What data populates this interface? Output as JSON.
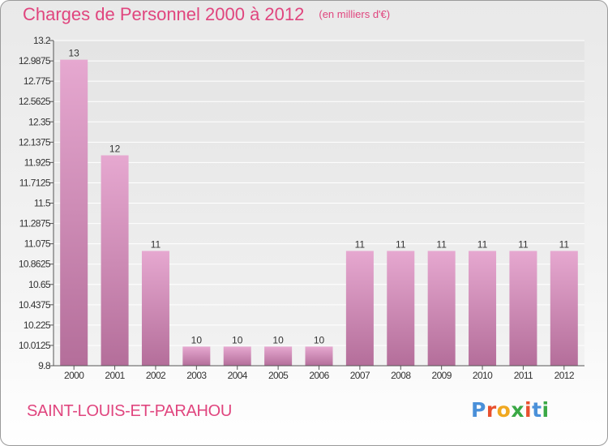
{
  "header": {
    "title": "Charges de Personnel 2000 à 2012",
    "subtitle": "(en milliers d'€)"
  },
  "footer": {
    "town": "SAINT-LOUIS-ET-PARAHOU",
    "brand": "Proxiti",
    "brand_colors": [
      "#4a90d9",
      "#e8502e",
      "#f0a820",
      "#3aa845",
      "#e8502e",
      "#4a90d9",
      "#3aa845"
    ]
  },
  "chart_data": {
    "type": "bar",
    "categories": [
      "2000",
      "2001",
      "2002",
      "2003",
      "2004",
      "2005",
      "2006",
      "2007",
      "2008",
      "2009",
      "2010",
      "2011",
      "2012"
    ],
    "values": [
      13.0,
      12.0,
      11.0,
      10.0,
      10.0,
      10.0,
      10.0,
      11.0,
      11.0,
      11.0,
      11.0,
      11.0,
      11.0
    ],
    "labels": [
      "13",
      "12",
      "11",
      "10",
      "10",
      "10",
      "10",
      "11",
      "11",
      "11",
      "11",
      "11",
      "11"
    ],
    "ylim": [
      9.8,
      13.2
    ],
    "yticks": [
      "9.8",
      "10.0125",
      "10.225",
      "10.4375",
      "10.65",
      "10.8625",
      "11.075",
      "11.2875",
      "11.5",
      "11.7125",
      "11.925",
      "12.1375",
      "12.35",
      "12.5625",
      "12.775",
      "12.9875",
      "13.2"
    ],
    "grid": true,
    "bar_color": "#d98cb8"
  }
}
